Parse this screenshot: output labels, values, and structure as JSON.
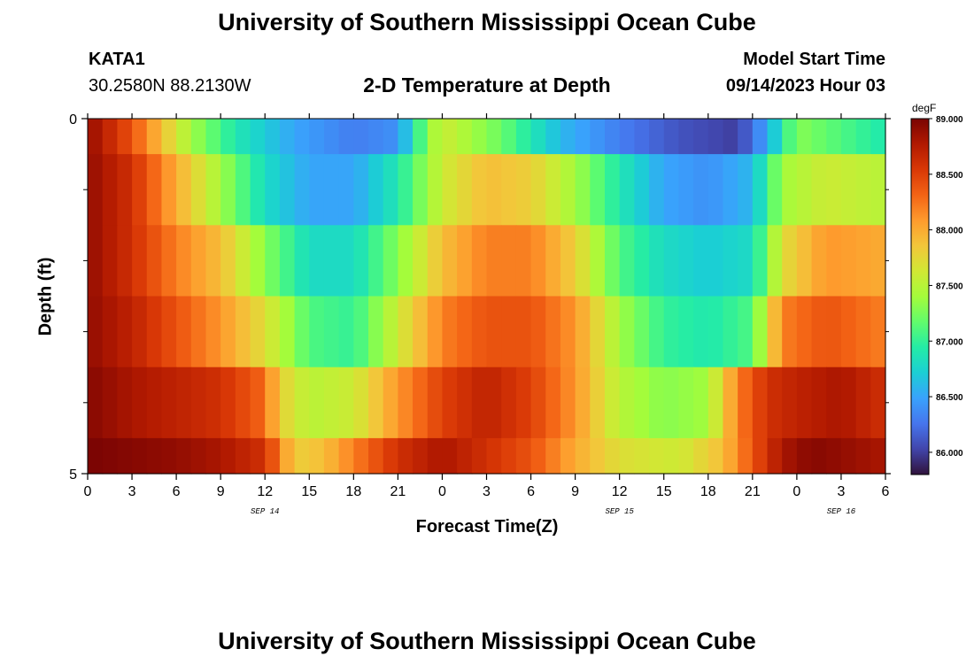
{
  "header": {
    "title": "University of Southern Mississippi Ocean Cube",
    "station": "KATA1",
    "coordinates": "30.2580N  88.2130W",
    "subtitle": "2-D Temperature at Depth",
    "model_start_label": "Model Start Time",
    "model_start_date": "09/14/2023 Hour 03"
  },
  "footer": {
    "title": "University of Southern Mississippi Ocean Cube"
  },
  "chart_data": {
    "type": "heatmap",
    "title": "2-D Temperature at Depth",
    "xlabel": "Forecast Time(Z)",
    "ylabel": "Depth (ft)",
    "x_range_hours": [
      0,
      54
    ],
    "x_ticks": [
      "0",
      "3",
      "6",
      "9",
      "12",
      "15",
      "18",
      "21",
      "0",
      "3",
      "6",
      "9",
      "12",
      "15",
      "18",
      "21",
      "0",
      "3",
      "6"
    ],
    "date_labels": [
      {
        "label": "SEP 14",
        "hour": 12
      },
      {
        "label": "SEP 15",
        "hour": 36
      },
      {
        "label": "SEP 16",
        "hour": 51
      }
    ],
    "y_range": [
      0,
      5
    ],
    "y_tick_labels": [
      {
        "label": "0",
        "value": 0
      },
      {
        "label": "5",
        "value": 5
      }
    ],
    "y_minor_ticks": [
      1,
      2,
      3,
      4
    ],
    "colorbar": {
      "unit": "degF",
      "min": 85.8,
      "max": 89.0,
      "ticks": [
        "86.000",
        "86.500",
        "87.000",
        "87.500",
        "88.000",
        "88.500",
        "89.000"
      ],
      "colors": [
        "#30123b",
        "#4145ab",
        "#4675ed",
        "#39a2fc",
        "#1bcfd4",
        "#24eca6",
        "#61fc6c",
        "#a4fc3b",
        "#d1e834",
        "#f3c63a",
        "#fe9b2d",
        "#f36315",
        "#d93806",
        "#b11901",
        "#7a0403"
      ]
    },
    "depth_layers": [
      {
        "depth_ft": 0,
        "key_hours": [
          0,
          3,
          5,
          7,
          10,
          14,
          18,
          21,
          23,
          24,
          28,
          32,
          36,
          40,
          44,
          46,
          48,
          54
        ],
        "key_temps": [
          88.9,
          88.4,
          87.9,
          87.4,
          86.9,
          86.5,
          86.3,
          86.4,
          87.3,
          87.6,
          87.2,
          86.6,
          86.3,
          86.1,
          86.0,
          86.5,
          87.3,
          86.9
        ]
      },
      {
        "depth_ft": 1,
        "key_hours": [
          0,
          3,
          6,
          9,
          12,
          15,
          18,
          21,
          24,
          27,
          30,
          33,
          36,
          39,
          42,
          45,
          47,
          50,
          54
        ],
        "key_temps": [
          88.9,
          88.6,
          88.0,
          87.4,
          86.8,
          86.5,
          86.5,
          86.9,
          87.6,
          87.9,
          87.8,
          87.4,
          86.9,
          86.5,
          86.4,
          86.6,
          87.4,
          87.6,
          87.5
        ]
      },
      {
        "depth_ft": 2,
        "key_hours": [
          0,
          3,
          6,
          9,
          12,
          15,
          18,
          21,
          24,
          27,
          30,
          33,
          36,
          39,
          42,
          45,
          47,
          50,
          54
        ],
        "key_temps": [
          88.9,
          88.6,
          88.2,
          87.9,
          87.3,
          86.8,
          86.8,
          87.3,
          87.9,
          88.2,
          88.2,
          87.8,
          87.1,
          86.8,
          86.7,
          86.8,
          87.7,
          88.1,
          88.0
        ]
      },
      {
        "depth_ft": 3,
        "key_hours": [
          0,
          3,
          6,
          9,
          12,
          15,
          18,
          21,
          24,
          27,
          30,
          33,
          36,
          39,
          42,
          45,
          47,
          50,
          54
        ],
        "key_temps": [
          88.9,
          88.7,
          88.4,
          88.1,
          87.7,
          87.1,
          87.0,
          87.6,
          88.2,
          88.4,
          88.4,
          88.1,
          87.4,
          87.0,
          86.9,
          87.1,
          88.2,
          88.4,
          88.2
        ]
      },
      {
        "depth_ft": 4,
        "key_hours": [
          0,
          3,
          6,
          9,
          12,
          13,
          15,
          18,
          21,
          24,
          27,
          30,
          33,
          36,
          39,
          42,
          44,
          46,
          48,
          51,
          54
        ],
        "key_temps": [
          88.95,
          88.8,
          88.7,
          88.6,
          88.3,
          87.8,
          87.5,
          87.6,
          88.1,
          88.5,
          88.7,
          88.5,
          88.1,
          87.5,
          87.3,
          87.4,
          88.2,
          88.6,
          88.7,
          88.8,
          88.6
        ]
      },
      {
        "depth_ft": 5,
        "key_hours": [
          0,
          3,
          6,
          9,
          12,
          13,
          14,
          16,
          18,
          21,
          24,
          27,
          30,
          33,
          36,
          40,
          43,
          45,
          47,
          49,
          51,
          54
        ],
        "key_temps": [
          89.0,
          88.95,
          88.9,
          88.8,
          88.6,
          88.2,
          87.8,
          87.9,
          88.2,
          88.6,
          88.8,
          88.6,
          88.4,
          88.0,
          87.7,
          87.6,
          87.9,
          88.4,
          88.8,
          88.95,
          88.9,
          88.8
        ]
      }
    ]
  }
}
